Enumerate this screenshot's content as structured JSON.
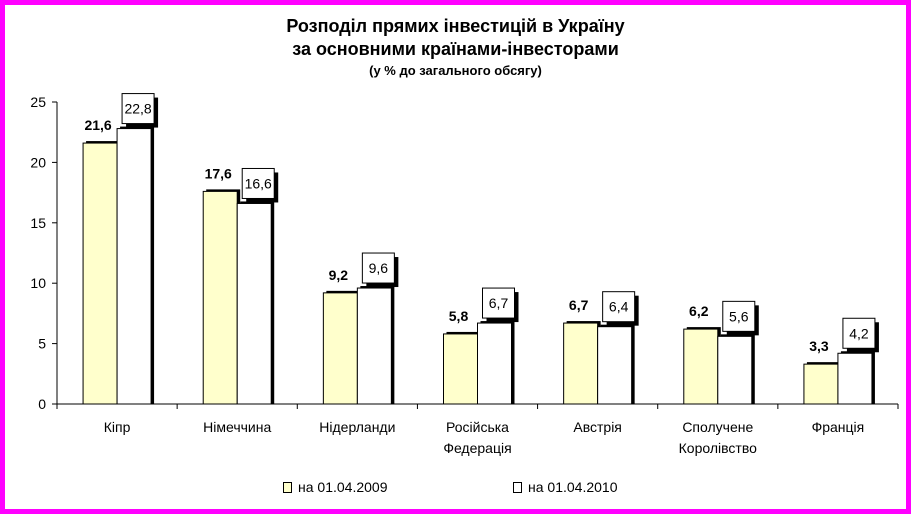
{
  "title_line1": "Розподіл прямих інвестицій в Україну",
  "title_line2": "за основними країнами-інвесторами",
  "title_line3": "(у % до загального обсягу)",
  "colors": {
    "frame": "#ff00ff",
    "series_2009": "#ffffcc",
    "series_2010": "#ffffff",
    "outline": "#000000"
  },
  "chart_data": {
    "type": "bar",
    "title": "Розподіл прямих інвестицій в Україну за основними країнами-інвесторами",
    "subtitle": "(у % до загального обсягу)",
    "categories": [
      [
        "Кіпр"
      ],
      [
        "Німеччина"
      ],
      [
        "Нідерланди"
      ],
      [
        "Російська",
        "Федерація"
      ],
      [
        "Австрія"
      ],
      [
        "Сполучене",
        "Королівство"
      ],
      [
        "Франція"
      ]
    ],
    "series": [
      {
        "name": "на 01.04.2009",
        "values": [
          21.6,
          17.6,
          9.2,
          5.8,
          6.7,
          6.2,
          3.3
        ],
        "labels": [
          "21,6",
          "17,6",
          "9,2",
          "5,8",
          "6,7",
          "6,2",
          "3,3"
        ]
      },
      {
        "name": "на 01.04.2010",
        "values": [
          22.8,
          16.6,
          9.6,
          6.7,
          6.4,
          5.6,
          4.2
        ],
        "labels": [
          "22,8",
          "16,6",
          "9,6",
          "6,7",
          "6,4",
          "5,6",
          "4,2"
        ]
      }
    ],
    "ylim": [
      0,
      25
    ],
    "yticks": [
      0,
      5,
      10,
      15,
      20,
      25
    ],
    "xlabel": "",
    "ylabel": "",
    "grid": false,
    "legend_position": "bottom"
  }
}
